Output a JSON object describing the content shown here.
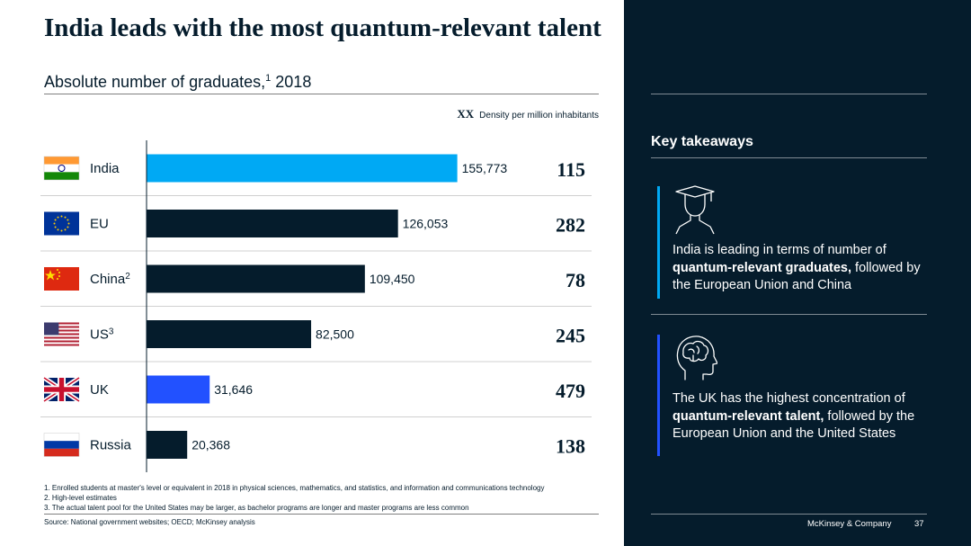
{
  "title": "India leads with the most quantum-relevant talent",
  "subtitle": "Absolute number of graduates,",
  "subtitle_sup": "1",
  "subtitle_year": " 2018",
  "legend": {
    "marker": "XX",
    "label": "Density per million inhabitants"
  },
  "chart_data": {
    "type": "bar",
    "orientation": "horizontal",
    "title": "Absolute number of graduates, 2018",
    "categories": [
      "India",
      "EU",
      "China",
      "US",
      "UK",
      "Russia"
    ],
    "category_superscripts": [
      "",
      "",
      "2",
      "3",
      "",
      ""
    ],
    "values": [
      155773,
      126053,
      109450,
      82500,
      31646,
      20368
    ],
    "value_labels": [
      "155,773",
      "126,053",
      "109,450",
      "82,500",
      "31,646",
      "20,368"
    ],
    "density": [
      "115",
      "282",
      "78",
      "245",
      "479",
      "138"
    ],
    "density_label": "Density per million inhabitants",
    "bar_colors": [
      "#00a9f4",
      "#051c2c",
      "#051c2c",
      "#051c2c",
      "#2251ff",
      "#051c2c"
    ],
    "xlim": [
      0,
      160000
    ],
    "grid": false
  },
  "footnotes": [
    "1. Enrolled students at master's level or equivalent in 2018 in physical sciences, mathematics, and statistics, and information and communications technology",
    "2. High-level estimates",
    "3. The actual talent pool for the United States may be larger, as bachelor programs are longer and master programs are less common"
  ],
  "source": "Source: National government websites; OECD; McKinsey analysis",
  "sidebar": {
    "heading": "Key takeaways",
    "takeaway1": {
      "pre": "India is leading in terms of number of ",
      "bold": "quantum-relevant graduates,",
      "post": " followed by the European Union and China"
    },
    "takeaway2": {
      "pre": "The UK has the highest concentration of ",
      "bold": "quantum-relevant talent,",
      "post": " followed by the European Union and the United States"
    },
    "icon1": "graduate-icon",
    "icon2": "brain-head-icon"
  },
  "footer": {
    "brand": "McKinsey & Company",
    "page": "37"
  },
  "colors": {
    "navy": "#051c2c",
    "cyan": "#00a9f4",
    "blue": "#2251ff"
  }
}
